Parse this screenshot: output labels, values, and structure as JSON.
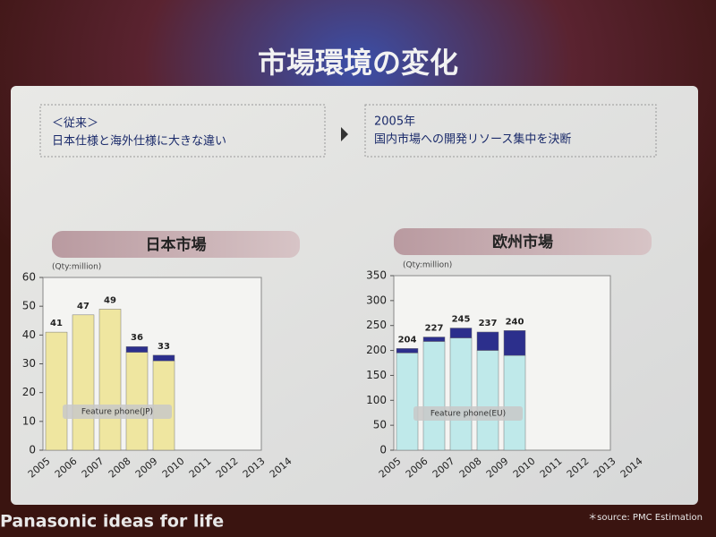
{
  "slide": {
    "title": "市場環境の変化",
    "left_box": [
      "＜従来＞",
      "日本仕様と海外仕様に大きな違い"
    ],
    "right_box": [
      "2005年",
      "国内市場への開発リソース集中を決断"
    ],
    "brand": "Panasonic ideas for life",
    "source": "＊source: PMC Estimation"
  },
  "chart_data": [
    {
      "type": "bar",
      "stacked": true,
      "title": "日本市場",
      "unit_label": "(Qty:million)",
      "categories": [
        "2005",
        "2006",
        "2007",
        "2008",
        "2009",
        "2010",
        "2011",
        "2012",
        "2013",
        "2014"
      ],
      "series": [
        {
          "name": "Feature phone(JP)",
          "color": "#efe6a0",
          "values": [
            41,
            47,
            49,
            34,
            31,
            null,
            null,
            null,
            null,
            null
          ]
        },
        {
          "color": "#2c2f8c",
          "values": [
            0,
            0,
            0,
            2,
            2,
            null,
            null,
            null,
            null,
            null
          ]
        }
      ],
      "total_labels": [
        41,
        47,
        49,
        36,
        33,
        null,
        null,
        null,
        null,
        null
      ],
      "ylim": [
        0,
        60
      ],
      "yticks": [
        0,
        10,
        20,
        30,
        40,
        50,
        60
      ]
    },
    {
      "type": "bar",
      "stacked": true,
      "title": "欧州市場",
      "unit_label": "(Qty:million)",
      "categories": [
        "2005",
        "2006",
        "2007",
        "2008",
        "2009",
        "2010",
        "2011",
        "2012",
        "2013",
        "2014"
      ],
      "series": [
        {
          "name": "Feature phone(EU)",
          "color": "#bfe9ea",
          "values": [
            195,
            218,
            225,
            200,
            190,
            null,
            null,
            null,
            null,
            null
          ]
        },
        {
          "color": "#2c2f8c",
          "values": [
            9,
            9,
            20,
            37,
            50,
            null,
            null,
            null,
            null,
            null
          ]
        }
      ],
      "total_labels": [
        204,
        227,
        245,
        237,
        240,
        null,
        null,
        null,
        null,
        null
      ],
      "ylim": [
        0,
        350
      ],
      "yticks": [
        0,
        50,
        100,
        150,
        200,
        250,
        300,
        350
      ]
    }
  ]
}
